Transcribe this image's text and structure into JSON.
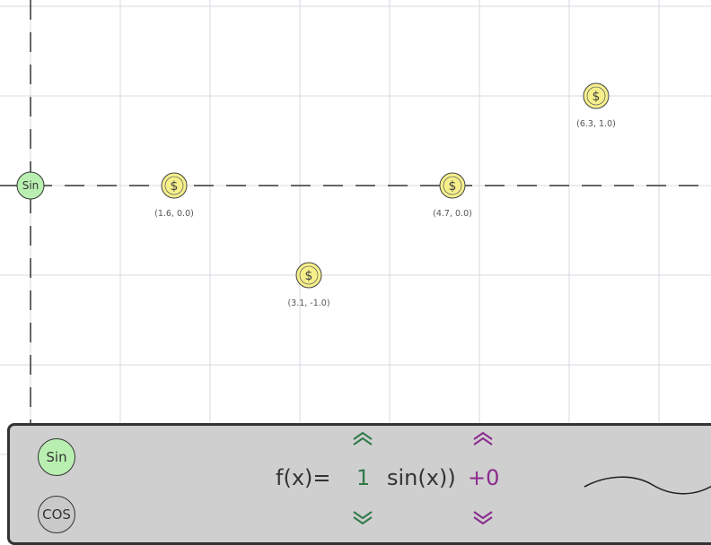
{
  "graph": {
    "player_label": "Sin",
    "coins": [
      {
        "label": "(1.6, 0.0)",
        "x": 1.6,
        "y": 0.0
      },
      {
        "label": "(3.1, -1.0)",
        "x": 3.1,
        "y": -1.0
      },
      {
        "label": "(4.7, 0.0)",
        "x": 4.7,
        "y": 0.0
      },
      {
        "label": "(6.3, 1.0)",
        "x": 6.3,
        "y": 1.0
      }
    ],
    "coin_symbol": "$",
    "colors": {
      "coin": "#f7f08a",
      "player": "#b9f0b2",
      "grid": "#d8d8e0"
    }
  },
  "panel": {
    "functions": [
      {
        "label": "Sin",
        "selected": true
      },
      {
        "label": "COS",
        "selected": false
      }
    ],
    "equation": {
      "prefix": "f(x)=",
      "coefficient": "1",
      "function": "sin(x))",
      "offset": "+0"
    },
    "colors": {
      "coefficient": "#2f7a4a",
      "offset": "#8a2a8f",
      "panel": "#cfcfcf"
    }
  }
}
